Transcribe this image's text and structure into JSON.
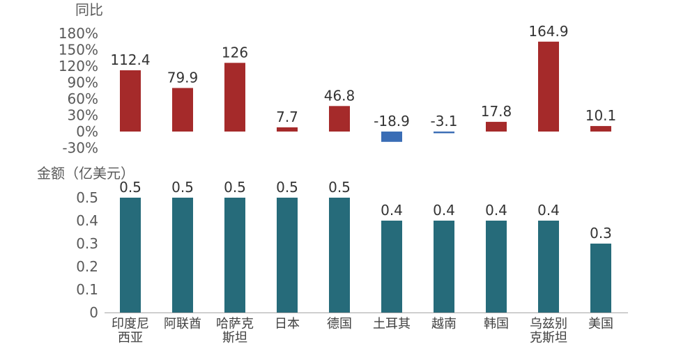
{
  "chart_data": [
    {
      "type": "bar",
      "ylabel": "同比",
      "categories": [
        "印度尼西亚",
        "阿联酋",
        "哈萨克斯坦",
        "日本",
        "德国",
        "土耳其",
        "越南",
        "韩国",
        "乌兹别克斯坦",
        "美国"
      ],
      "values": [
        112.4,
        79.9,
        126,
        7.7,
        46.8,
        -18.9,
        -3.1,
        17.8,
        164.9,
        10.1
      ],
      "value_labels": [
        "112.4",
        "79.9",
        "126",
        "7.7",
        "46.8",
        "-18.9",
        "-3.1",
        "17.8",
        "164.9",
        "10.1"
      ],
      "ylim": [
        -30,
        180
      ],
      "yticks": [
        -30,
        0,
        30,
        60,
        90,
        120,
        150,
        180
      ],
      "ytick_labels": [
        "-30%",
        "0%",
        "30%",
        "60%",
        "90%",
        "120%",
        "150%",
        "180%"
      ],
      "grid": false,
      "colors": {
        "positive": "#A52A2A",
        "negative": "#3A6DB5"
      }
    },
    {
      "type": "bar",
      "ylabel": "金额（亿美元）",
      "categories": [
        "印度尼西亚",
        "阿联酋",
        "哈萨克斯坦",
        "日本",
        "德国",
        "土耳其",
        "越南",
        "韩国",
        "乌兹别克斯坦",
        "美国"
      ],
      "category_labels": [
        [
          "印度尼",
          "西亚"
        ],
        [
          "阿联酋"
        ],
        [
          "哈萨克",
          "斯坦"
        ],
        [
          "日本"
        ],
        [
          "德国"
        ],
        [
          "土耳其"
        ],
        [
          "越南"
        ],
        [
          "韩国"
        ],
        [
          "乌兹别",
          "克斯坦"
        ],
        [
          "美国"
        ]
      ],
      "values": [
        0.5,
        0.5,
        0.5,
        0.5,
        0.5,
        0.4,
        0.4,
        0.4,
        0.4,
        0.3
      ],
      "value_labels": [
        "0.5",
        "0.5",
        "0.5",
        "0.5",
        "0.5",
        "0.4",
        "0.4",
        "0.4",
        "0.4",
        "0.3"
      ],
      "ylim": [
        0,
        0.5
      ],
      "yticks": [
        0,
        0.1,
        0.2,
        0.3,
        0.4,
        0.5
      ],
      "ytick_labels": [
        "0",
        "0.1",
        "0.2",
        "0.3",
        "0.4",
        "0.5"
      ],
      "grid": false,
      "colors": {
        "bar": "#266B7A"
      }
    }
  ]
}
